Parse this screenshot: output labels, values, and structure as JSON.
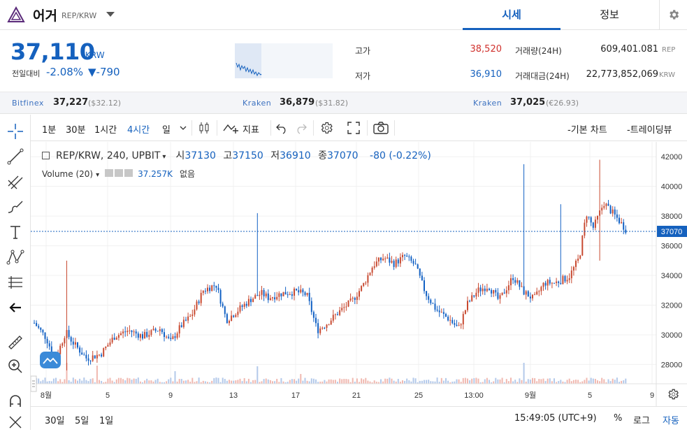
{
  "header": {
    "coin_name": "어거",
    "pair": "REP/KRW",
    "tabs": [
      {
        "label": "시세",
        "active": true
      },
      {
        "label": "정보",
        "active": false
      }
    ]
  },
  "price": {
    "current": "37,110",
    "unit": "KRW",
    "change_label": "전일대비",
    "change_rate": "-2.08%",
    "change_amount": "▼-790"
  },
  "stats": {
    "high_label": "고가",
    "high_value": "38,520",
    "low_label": "저가",
    "low_value": "36,910",
    "volume_label": "거래량(24H)",
    "volume_value": "609,401.081",
    "volume_unit": "REP",
    "amount_label": "거래대금(24H)",
    "amount_value": "22,773,852,069",
    "amount_unit": "KRW"
  },
  "exchanges": [
    {
      "name": "Bitfinex",
      "price": "37,227",
      "fx": "($32.12)"
    },
    {
      "name": "Kraken",
      "price": "36,879",
      "fx": "($31.82)"
    },
    {
      "name": "Kraken",
      "price": "37,025",
      "fx": "(€26.93)"
    }
  ],
  "toolbar": {
    "intervals": [
      "1분",
      "30분",
      "1시간",
      "4시간",
      "일"
    ],
    "active_interval": "4시간",
    "indicator_label": "지표",
    "basic_chart_label": "-기본 차트",
    "tradingview_label": "-트레이딩뷰"
  },
  "legend": {
    "symbol": "REP/KRW, 240, UPBIT",
    "o_label": "시",
    "o": "37130",
    "h_label": "고",
    "h": "37150",
    "l_label": "저",
    "l": "36910",
    "c_label": "종",
    "c": "37070",
    "change": "-80 (-0.22%)",
    "volume_name": "Volume (20)",
    "volume_value": "37.257K",
    "volume_extra": "없음"
  },
  "chart_data": {
    "type": "candlestick",
    "y_ticks": [
      "28000",
      "30000",
      "32000",
      "34000",
      "36000",
      "38000",
      "40000",
      "42000"
    ],
    "ylim": [
      26700,
      43000
    ],
    "x_ticks": [
      "8월",
      "5",
      "9",
      "13",
      "17",
      "21",
      "25",
      "13:00",
      "9월",
      "5",
      "9"
    ],
    "last_price": "37070",
    "colors": {
      "up": "#c84a31",
      "down": "#1261c4",
      "up_vol": "#f0b8b0",
      "down_vol": "#b3c9ea"
    }
  },
  "bottom": {
    "ranges": [
      "30일",
      "5일",
      "1일"
    ],
    "time": "15:49:05 (UTC+9)",
    "percent": "%",
    "log": "로그",
    "auto": "자동"
  }
}
